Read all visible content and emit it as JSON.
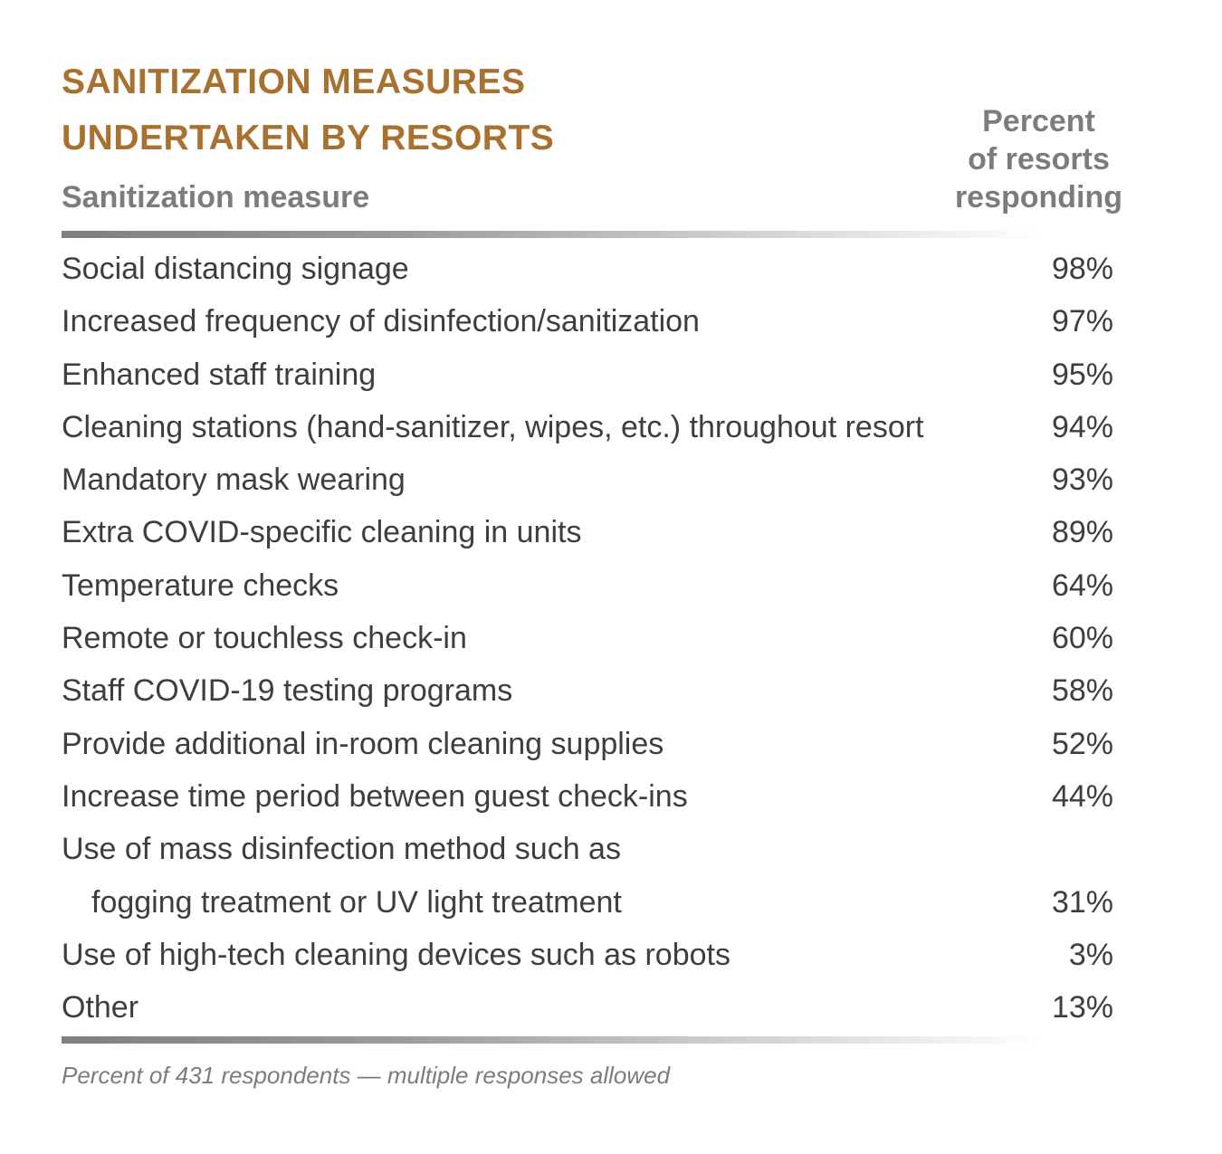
{
  "chart_data": {
    "type": "table",
    "title_lines": [
      "SANITIZATION MEASURES",
      "UNDERTAKEN BY RESORTS"
    ],
    "column_headers": {
      "measure": "Sanitization measure",
      "percent_lines": [
        "Percent",
        "of resorts",
        "responding"
      ]
    },
    "rows": [
      {
        "label_lines": [
          "Social distancing signage"
        ],
        "value": "98%",
        "percent": 98
      },
      {
        "label_lines": [
          "Increased frequency of disinfection/sanitization"
        ],
        "value": "97%",
        "percent": 97
      },
      {
        "label_lines": [
          "Enhanced staff training"
        ],
        "value": "95%",
        "percent": 95
      },
      {
        "label_lines": [
          "Cleaning stations (hand-sanitizer, wipes, etc.) throughout resort"
        ],
        "value": "94%",
        "percent": 94
      },
      {
        "label_lines": [
          "Mandatory mask wearing"
        ],
        "value": "93%",
        "percent": 93
      },
      {
        "label_lines": [
          "Extra COVID-specific cleaning in units"
        ],
        "value": "89%",
        "percent": 89
      },
      {
        "label_lines": [
          "Temperature checks"
        ],
        "value": "64%",
        "percent": 64
      },
      {
        "label_lines": [
          "Remote or touchless check-in"
        ],
        "value": "60%",
        "percent": 60
      },
      {
        "label_lines": [
          "Staff COVID-19 testing programs"
        ],
        "value": "58%",
        "percent": 58
      },
      {
        "label_lines": [
          "Provide additional in-room cleaning supplies"
        ],
        "value": "52%",
        "percent": 52
      },
      {
        "label_lines": [
          "Increase time period between guest check-ins"
        ],
        "value": "44%",
        "percent": 44
      },
      {
        "label_lines": [
          "Use of mass disinfection method such as",
          "fogging treatment or UV light treatment"
        ],
        "value": "31%",
        "percent": 31
      },
      {
        "label_lines": [
          "Use of high-tech cleaning devices such as robots"
        ],
        "value": "3%",
        "percent": 3
      },
      {
        "label_lines": [
          "Other"
        ],
        "value": "13%",
        "percent": 13
      }
    ],
    "footnote": "Percent of 431 respondents — multiple responses allowed"
  },
  "colors": {
    "title": "#a8712f",
    "header": "#7a7c80",
    "body_text": "#3d3e42",
    "rule": "#7d7f84"
  }
}
